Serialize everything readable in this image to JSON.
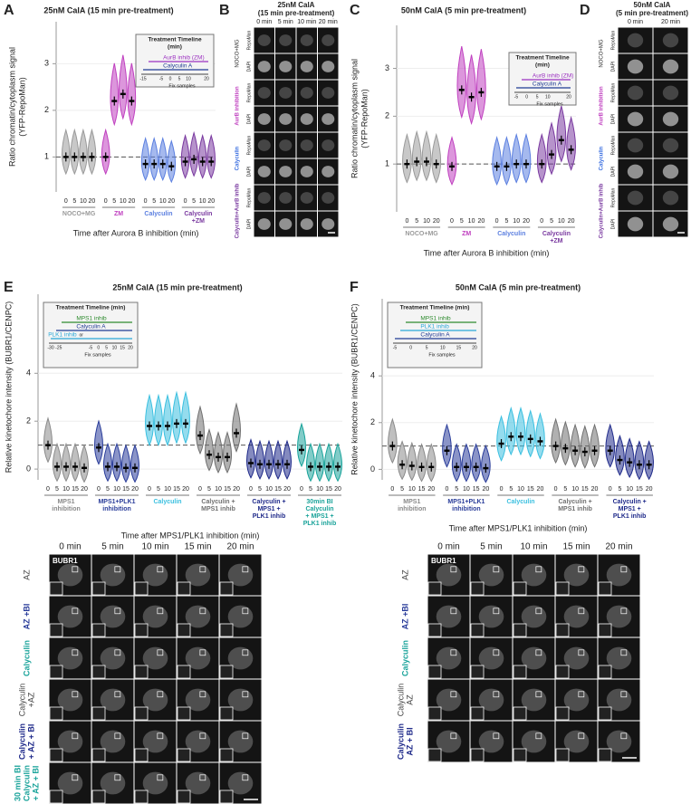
{
  "chart_data": [
    {
      "panel": "A",
      "type": "violin",
      "title": "25nM CalA (15 min pre-treatment)",
      "y_label_lines": [
        "Ratio chromatin/cytoplasm signal",
        "(YFP-RepoMan)"
      ],
      "x_label": "Time after Aurora B inhibition (min)",
      "ylim": [
        0.25,
        3.9
      ],
      "yticks": [
        1,
        2,
        3
      ],
      "reference_line": 1,
      "inset": {
        "title_lines": [
          "Treatment Timeline",
          "(min)"
        ],
        "bars": [
          {
            "name": "AurB inhib (ZM)",
            "color": "#9b30c0"
          },
          {
            "name": "Calyculin A",
            "color": "#1f3a93"
          }
        ],
        "ticks": [
          -15,
          -5,
          0,
          5,
          10,
          20
        ],
        "note": "Fix samples"
      },
      "series": [
        {
          "name_lines": [
            "NOCO+MG"
          ],
          "color": "#9a9a9a",
          "x": [
            0,
            5,
            10,
            20
          ],
          "values": [
            1,
            1,
            1,
            1
          ]
        },
        {
          "name_lines": [
            "ZM"
          ],
          "color": "#c040c0",
          "x": [
            0,
            5,
            10,
            20
          ],
          "values": [
            1,
            2.2,
            2.35,
            2.2
          ]
        },
        {
          "name_lines": [
            "Calyculin"
          ],
          "color": "#5b7fe0",
          "x": [
            0,
            5,
            10,
            20
          ],
          "values": [
            0.85,
            0.85,
            0.85,
            0.8
          ]
        },
        {
          "name_lines": [
            "Calyculin",
            "+ZM"
          ],
          "color": "#7a3aa0",
          "x": [
            0,
            5,
            10,
            20
          ],
          "values": [
            0.9,
            0.95,
            0.9,
            0.9
          ]
        }
      ]
    },
    {
      "panel": "C",
      "type": "violin",
      "title": "50nM CalA (5 min pre-treatment)",
      "y_label_lines": [
        "Ratio chromatin/cytoplasm signal",
        "(YFP-RepoMan)"
      ],
      "x_label": "Time after Aurora B inhibition (min)",
      "ylim": [
        0,
        3.9
      ],
      "yticks": [
        1,
        2,
        3
      ],
      "reference_line": 1,
      "inset": {
        "title_lines": [
          "Treatment Timeline",
          "(min)"
        ],
        "bars": [
          {
            "name": "AurB inhib (ZM)",
            "color": "#9b30c0"
          },
          {
            "name": "Calyculin A",
            "color": "#1f3a93"
          }
        ],
        "ticks": [
          -5,
          0,
          5,
          10,
          20
        ],
        "note": "Fix samples"
      },
      "series": [
        {
          "name_lines": [
            "NOCO+MG"
          ],
          "color": "#9a9a9a",
          "x": [
            0,
            5,
            10,
            20
          ],
          "values": [
            1,
            1.05,
            1.05,
            1
          ]
        },
        {
          "name_lines": [
            "ZM"
          ],
          "color": "#c040c0",
          "x": [
            0,
            5,
            10,
            20
          ],
          "values": [
            0.95,
            2.55,
            2.4,
            2.5
          ]
        },
        {
          "name_lines": [
            "Calyculin"
          ],
          "color": "#5b7fe0",
          "x": [
            0,
            5,
            10,
            20
          ],
          "values": [
            0.95,
            0.95,
            1,
            1
          ]
        },
        {
          "name_lines": [
            "Calyculin",
            "+ZM"
          ],
          "color": "#7a3aa0",
          "x": [
            0,
            5,
            10,
            20
          ],
          "values": [
            1,
            1.2,
            1.5,
            1.3
          ]
        }
      ]
    },
    {
      "panel": "E",
      "type": "violin",
      "title": "25nM CalA (15 min pre-treatment)",
      "y_label_lines": [
        "Relative kinetochore intensity (BUBR1/CENPC)"
      ],
      "x_label": "Time after MPS1/PLK1 inhibition (min)",
      "ylim": [
        -0.45,
        7.3
      ],
      "yticks": [
        0,
        2,
        4
      ],
      "reference_line": 1,
      "inset": {
        "title_lines": [
          "Treatment Timeline (min)"
        ],
        "bars": [
          {
            "name": "MPS1 inhib",
            "color": "#2e8b2e"
          },
          {
            "name": "Calyculin A",
            "color": "#1f3a93"
          },
          {
            "name": "PLK1 inhib",
            "color": "#29a8d8"
          }
        ],
        "or_text": "or",
        "ticks": [
          -30,
          -25,
          -5,
          0,
          5,
          10,
          15,
          20
        ],
        "note": "Fix samples"
      },
      "series": [
        {
          "name_lines": [
            "MPS1",
            "inhibition"
          ],
          "color": "#8a8a8a",
          "x": [
            0,
            5,
            10,
            15,
            20
          ],
          "values": [
            1,
            0.1,
            0.1,
            0.1,
            0.05
          ]
        },
        {
          "name_lines": [
            "MPS1+PLK1",
            "inhibition"
          ],
          "color": "#2a3d9a",
          "x": [
            0,
            5,
            10,
            15,
            20
          ],
          "values": [
            0.9,
            0.1,
            0.1,
            0.05,
            0.05
          ]
        },
        {
          "name_lines": [
            "Calyculin"
          ],
          "color": "#3cc0e0",
          "x": [
            0,
            5,
            10,
            15,
            20
          ],
          "values": [
            1.8,
            1.8,
            1.8,
            1.9,
            1.9
          ]
        },
        {
          "name_lines": [
            "Calyculin +",
            "MPS1 inhib"
          ],
          "color": "#707070",
          "x": [
            0,
            5,
            10,
            15,
            20
          ],
          "values": [
            1.4,
            0.6,
            0.5,
            0.5,
            1.5
          ]
        },
        {
          "name_lines": [
            "Calyculin +",
            "MPS1 +",
            "PLK1 inhib"
          ],
          "color": "#1f2a8a",
          "x": [
            0,
            5,
            10,
            15,
            20
          ],
          "values": [
            0.25,
            0.2,
            0.2,
            0.2,
            0.2
          ]
        },
        {
          "name_lines": [
            "30min BI",
            "Calyculin",
            "+ MPS1 +",
            "PLK1 inhib"
          ],
          "color": "#1aa39a",
          "x": [
            0,
            5,
            10,
            15,
            20
          ],
          "values": [
            0.8,
            0.1,
            0.1,
            0.1,
            0.1
          ]
        }
      ]
    },
    {
      "panel": "F",
      "type": "violin",
      "title": "50nM CalA (5 min pre-treatment)",
      "y_label_lines": [
        "Relative kinetochore intensity (BUBR1/CENPC)"
      ],
      "x_label": "Time after MPS1/PLK1 inhibition (min)",
      "ylim": [
        -0.45,
        7.3
      ],
      "yticks": [
        0,
        2,
        4
      ],
      "reference_line": 1,
      "inset": {
        "title_lines": [
          "Treatment Timeline (min)"
        ],
        "bars": [
          {
            "name": "MPS1 inhib",
            "color": "#2e8b2e"
          },
          {
            "name": "PLK1 inhib",
            "color": "#29a8d8"
          },
          {
            "name": "Calyculin A",
            "color": "#1f3a93"
          }
        ],
        "ticks": [
          -5,
          0,
          5,
          10,
          15,
          20
        ],
        "note": "Fix samples"
      },
      "series": [
        {
          "name_lines": [
            "MPS1",
            "inhibition"
          ],
          "color": "#8a8a8a",
          "x": [
            0,
            5,
            10,
            15,
            20
          ],
          "values": [
            1,
            0.2,
            0.15,
            0.1,
            0.1
          ]
        },
        {
          "name_lines": [
            "MPS1+PLK1",
            "inhibition"
          ],
          "color": "#2a3d9a",
          "x": [
            0,
            5,
            10,
            15,
            20
          ],
          "values": [
            0.8,
            0.1,
            0.1,
            0.1,
            0.05
          ]
        },
        {
          "name_lines": [
            "Calyculin"
          ],
          "color": "#3cc0e0",
          "x": [
            0,
            5,
            10,
            15,
            20
          ],
          "values": [
            1.1,
            1.4,
            1.4,
            1.3,
            1.2
          ]
        },
        {
          "name_lines": [
            "Calyculin +",
            "MPS1 inhib"
          ],
          "color": "#707070",
          "x": [
            0,
            5,
            10,
            15,
            20
          ],
          "values": [
            1,
            0.9,
            0.8,
            0.75,
            0.8
          ]
        },
        {
          "name_lines": [
            "Calyculin +",
            "MPS1 +",
            "PLK1 inhib"
          ],
          "color": "#1f2a8a",
          "x": [
            0,
            5,
            10,
            15,
            20
          ],
          "values": [
            0.8,
            0.4,
            0.3,
            0.2,
            0.2
          ]
        }
      ]
    }
  ],
  "image_panels": [
    {
      "panel": "B",
      "title_lines": [
        "25nM CalA",
        "(15 min pre-treatment)"
      ],
      "columns": [
        "0 min",
        "5 min",
        "10 min",
        "20 min"
      ],
      "rows": [
        {
          "label_lines": [
            "NOCO+MG"
          ],
          "color": "#333333",
          "channels": [
            "RepoMan",
            "DAPI"
          ]
        },
        {
          "label_lines": [
            "AurB inhibition"
          ],
          "color": "#c040c0",
          "channels": [
            "RepoMan",
            "DAPI"
          ]
        },
        {
          "label_lines": [
            "Calyculin"
          ],
          "color": "#3a6ee0",
          "channels": [
            "RepoMan",
            "DAPI"
          ]
        },
        {
          "label_lines": [
            "Calyculin+AurB inhib"
          ],
          "color": "#7a3aa0",
          "channels": [
            "RepoMan",
            "DAPI"
          ]
        }
      ]
    },
    {
      "panel": "D",
      "title_lines": [
        "50nM CalA",
        "(5 min pre-treatment)"
      ],
      "columns": [
        "0 min",
        "20 min"
      ],
      "rows": [
        {
          "label_lines": [
            "NOCO+MG"
          ],
          "color": "#333333",
          "channels": [
            "RepoMan",
            "DAPI"
          ]
        },
        {
          "label_lines": [
            "AurB inhibition"
          ],
          "color": "#c040c0",
          "channels": [
            "RepoMan",
            "DAPI"
          ]
        },
        {
          "label_lines": [
            "Calyculin"
          ],
          "color": "#3a6ee0",
          "channels": [
            "RepoMan",
            "DAPI"
          ]
        },
        {
          "label_lines": [
            "Calyculin+AurB inhib"
          ],
          "color": "#7a3aa0",
          "channels": [
            "RepoMan",
            "DAPI"
          ]
        }
      ]
    },
    {
      "stain": "BUBR1",
      "columns": [
        "0 min",
        "5 min",
        "10 min",
        "15 min",
        "20 min"
      ],
      "rows": [
        {
          "label_lines": [
            "AZ"
          ],
          "color": "#444444"
        },
        {
          "label_lines": [
            "AZ +BI"
          ],
          "color": "#2a3d9a"
        },
        {
          "label_lines": [
            "Calyculin"
          ],
          "color": "#1aa39a"
        },
        {
          "label_lines": [
            "Calyculin",
            "+AZ"
          ],
          "color": "#444444"
        },
        {
          "label_lines": [
            "Calyculin",
            "+ AZ + BI"
          ],
          "color": "#1f2a8a"
        },
        {
          "label_lines": [
            "30 min BI",
            "Calyculin",
            "+ AZ + BI"
          ],
          "color": "#1aa39a"
        }
      ]
    },
    {
      "stain": "BUBR1",
      "columns": [
        "0 min",
        "5 min",
        "10 min",
        "15 min",
        "20 min"
      ],
      "rows": [
        {
          "label_lines": [
            "AZ"
          ],
          "color": "#444444"
        },
        {
          "label_lines": [
            "AZ +BI"
          ],
          "color": "#2a3d9a"
        },
        {
          "label_lines": [
            "Calyculin"
          ],
          "color": "#1aa39a"
        },
        {
          "label_lines": [
            "Calyculin",
            "AZ"
          ],
          "color": "#444444"
        },
        {
          "label_lines": [
            "Calyculin",
            "AZ + BI"
          ],
          "color": "#1f2a8a"
        }
      ]
    }
  ]
}
